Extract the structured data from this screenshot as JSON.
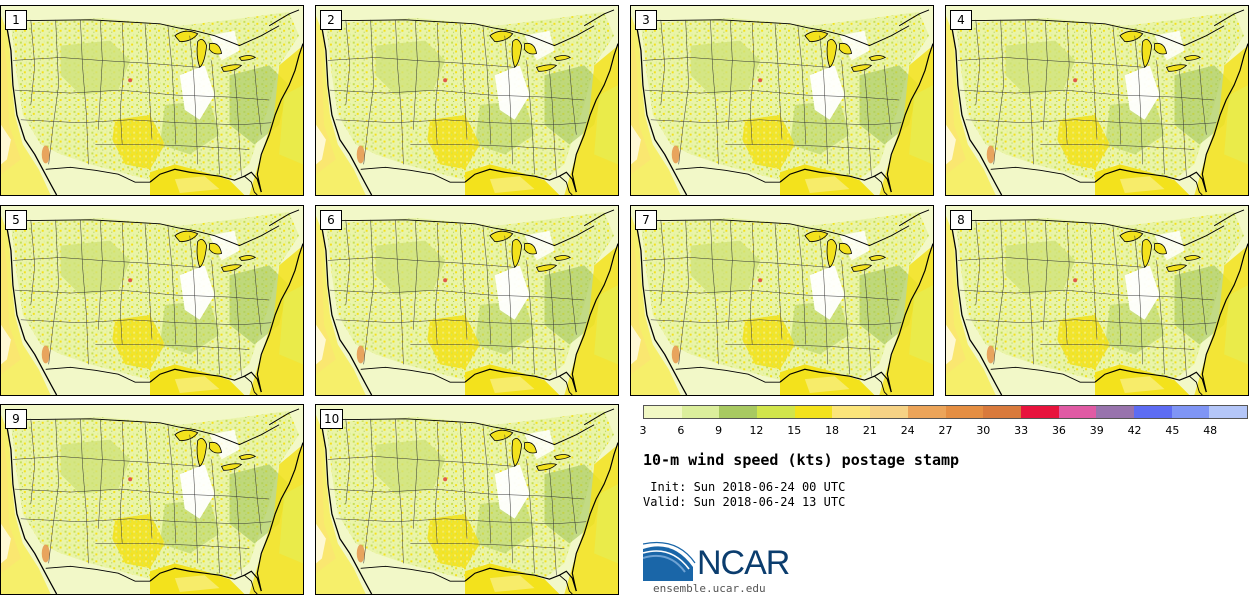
{
  "stamps": [
    "1",
    "2",
    "3",
    "4",
    "5",
    "6",
    "7",
    "8",
    "9",
    "10"
  ],
  "colorbar": {
    "colors": [
      "#f1f8c4",
      "#dbee9c",
      "#a8c961",
      "#d1e54c",
      "#f3e21c",
      "#fbe57a",
      "#f6d285",
      "#eca459",
      "#e58e42",
      "#d97a3c",
      "#e8133d",
      "#e05aa4",
      "#9873ad",
      "#5d6cf3",
      "#7f95f5",
      "#b4c6f8"
    ],
    "tick_labels": [
      "3",
      "6",
      "9",
      "12",
      "15",
      "18",
      "21",
      "24",
      "27",
      "30",
      "33",
      "36",
      "39",
      "42",
      "45",
      "48"
    ]
  },
  "header": {
    "title": "10-m wind speed (kts) postage stamp",
    "init": " Init: Sun 2018-06-24 00 UTC",
    "valid": "Valid: Sun 2018-06-24 13 UTC"
  },
  "footer": {
    "logo": "NCAR",
    "site": "ensemble.ucar.edu"
  },
  "icons": {
    "logo": "ncar-logo-icon"
  }
}
